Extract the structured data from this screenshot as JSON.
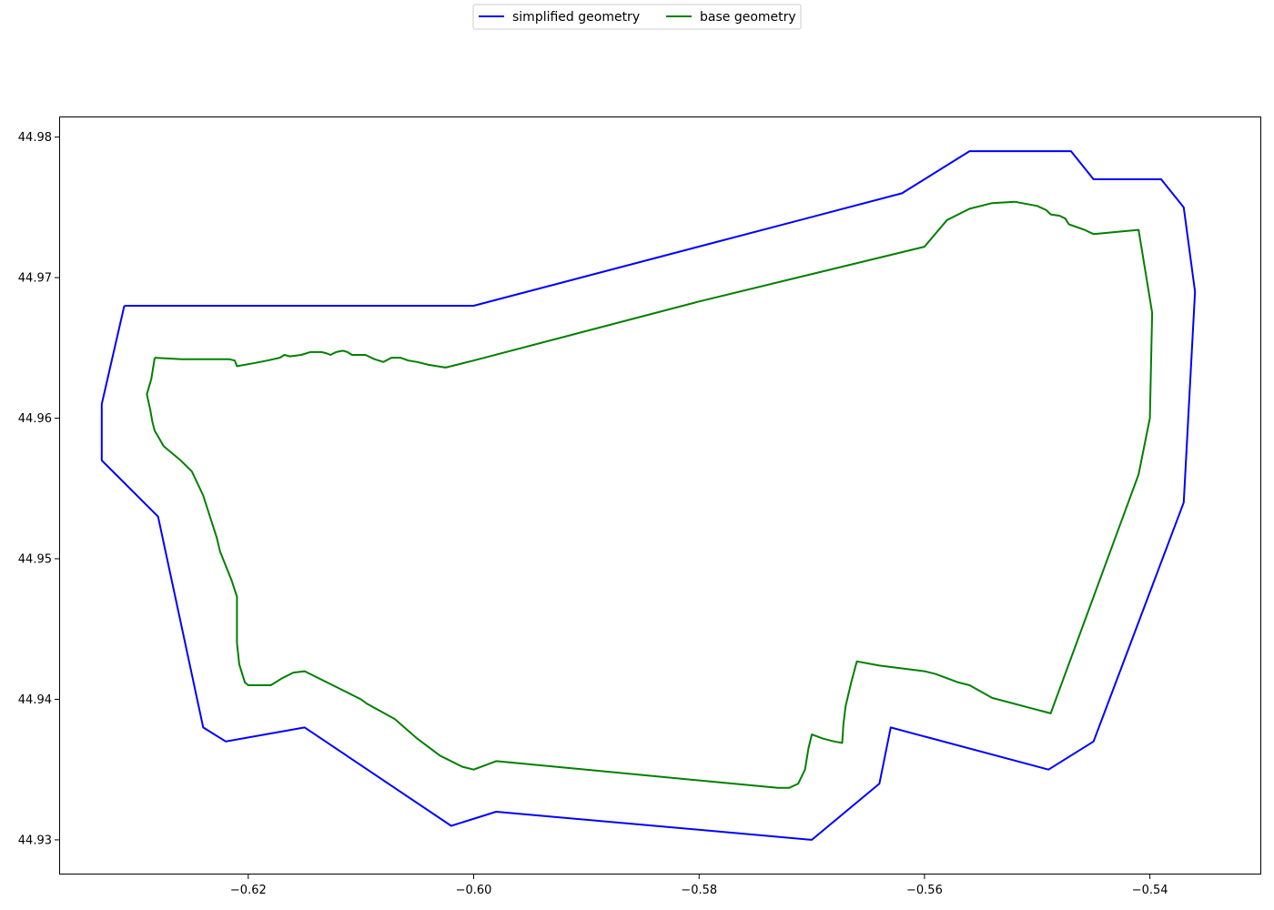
{
  "chart_data": {
    "type": "line",
    "title": "",
    "xlabel": "",
    "ylabel": "",
    "xlim": [
      -0.6367,
      -0.5302
    ],
    "ylim": [
      44.9276,
      44.9814
    ],
    "x_ticks": [
      -0.62,
      -0.6,
      -0.58,
      -0.56,
      -0.54
    ],
    "x_tick_labels": [
      "−0.62",
      "−0.60",
      "−0.58",
      "−0.56",
      "−0.54"
    ],
    "y_ticks": [
      44.93,
      44.94,
      44.95,
      44.96,
      44.97,
      44.98
    ],
    "y_tick_labels": [
      "44.93",
      "44.94",
      "44.95",
      "44.96",
      "44.97",
      "44.98"
    ],
    "grid": false,
    "legend_placement": "top-center",
    "series": [
      {
        "name": "simplified geometry",
        "color": "#0000ff",
        "points": [
          [
            -0.631,
            44.968
          ],
          [
            -0.6,
            44.968
          ],
          [
            -0.562,
            44.976
          ],
          [
            -0.556,
            44.979
          ],
          [
            -0.547,
            44.979
          ],
          [
            -0.545,
            44.977
          ],
          [
            -0.539,
            44.977
          ],
          [
            -0.537,
            44.975
          ],
          [
            -0.536,
            44.969
          ],
          [
            -0.537,
            44.954
          ],
          [
            -0.545,
            44.937
          ],
          [
            -0.549,
            44.935
          ],
          [
            -0.563,
            44.938
          ],
          [
            -0.564,
            44.934
          ],
          [
            -0.57,
            44.93
          ],
          [
            -0.598,
            44.932
          ],
          [
            -0.602,
            44.931
          ],
          [
            -0.615,
            44.938
          ],
          [
            -0.622,
            44.937
          ],
          [
            -0.624,
            44.938
          ],
          [
            -0.628,
            44.953
          ],
          [
            -0.633,
            44.957
          ],
          [
            -0.633,
            44.961
          ],
          [
            -0.631,
            44.968
          ]
        ]
      },
      {
        "name": "base geometry",
        "color": "#008000",
        "points": [
          [
            -0.6283,
            44.9643
          ],
          [
            -0.6259,
            44.9642
          ],
          [
            -0.6237,
            44.9642
          ],
          [
            -0.6217,
            44.9642
          ],
          [
            -0.6212,
            44.9641
          ],
          [
            -0.621,
            44.9637
          ],
          [
            -0.6196,
            44.9639
          ],
          [
            -0.6183,
            44.9641
          ],
          [
            -0.6172,
            44.9643
          ],
          [
            -0.6168,
            44.9645
          ],
          [
            -0.6163,
            44.9644
          ],
          [
            -0.6153,
            44.9645
          ],
          [
            -0.6145,
            44.9647
          ],
          [
            -0.6135,
            44.9647
          ],
          [
            -0.613,
            44.9646
          ],
          [
            -0.6127,
            44.9645
          ],
          [
            -0.6122,
            44.9647
          ],
          [
            -0.6116,
            44.9648
          ],
          [
            -0.6112,
            44.9647
          ],
          [
            -0.6108,
            44.9645
          ],
          [
            -0.6096,
            44.9645
          ],
          [
            -0.6088,
            44.9642
          ],
          [
            -0.608,
            44.964
          ],
          [
            -0.6073,
            44.9643
          ],
          [
            -0.6065,
            44.9643
          ],
          [
            -0.6058,
            44.9641
          ],
          [
            -0.605,
            44.964
          ],
          [
            -0.604,
            44.9638
          ],
          [
            -0.6025,
            44.9636
          ],
          [
            -0.602,
            44.9637
          ],
          [
            -0.6,
            44.9641
          ],
          [
            -0.58,
            44.9683
          ],
          [
            -0.56,
            44.9722
          ],
          [
            -0.558,
            44.9741
          ],
          [
            -0.556,
            44.9749
          ],
          [
            -0.554,
            44.9753
          ],
          [
            -0.552,
            44.9754
          ],
          [
            -0.55,
            44.9751
          ],
          [
            -0.5492,
            44.9748
          ],
          [
            -0.5488,
            44.9745
          ],
          [
            -0.548,
            44.9744
          ],
          [
            -0.5475,
            44.9742
          ],
          [
            -0.5472,
            44.9738
          ],
          [
            -0.5465,
            44.9736
          ],
          [
            -0.5458,
            44.9734
          ],
          [
            -0.545,
            44.9731
          ],
          [
            -0.541,
            44.9734
          ],
          [
            -0.5398,
            44.9675
          ],
          [
            -0.54,
            44.96
          ],
          [
            -0.541,
            44.956
          ],
          [
            -0.5488,
            44.939
          ],
          [
            -0.554,
            44.9401
          ],
          [
            -0.556,
            44.941
          ],
          [
            -0.557,
            44.9412
          ],
          [
            -0.558,
            44.9415
          ],
          [
            -0.559,
            44.9418
          ],
          [
            -0.56,
            44.942
          ],
          [
            -0.562,
            44.9422
          ],
          [
            -0.564,
            44.9424
          ],
          [
            -0.566,
            44.9427
          ],
          [
            -0.5665,
            44.9412
          ],
          [
            -0.567,
            44.9395
          ],
          [
            -0.5672,
            44.9382
          ],
          [
            -0.5673,
            44.9369
          ],
          [
            -0.568,
            44.937
          ],
          [
            -0.569,
            44.9372
          ],
          [
            -0.57,
            44.9375
          ],
          [
            -0.5703,
            44.9365
          ],
          [
            -0.5706,
            44.935
          ],
          [
            -0.5712,
            44.934
          ],
          [
            -0.572,
            44.9337
          ],
          [
            -0.573,
            44.9337
          ],
          [
            -0.598,
            44.9356
          ],
          [
            -0.599,
            44.9353
          ],
          [
            -0.6,
            44.935
          ],
          [
            -0.601,
            44.9352
          ],
          [
            -0.603,
            44.936
          ],
          [
            -0.605,
            44.9372
          ],
          [
            -0.607,
            44.9386
          ],
          [
            -0.6095,
            44.9397
          ],
          [
            -0.61,
            44.94
          ],
          [
            -0.615,
            44.942
          ],
          [
            -0.616,
            44.9419
          ],
          [
            -0.617,
            44.9415
          ],
          [
            -0.618,
            44.941
          ],
          [
            -0.62,
            44.941
          ],
          [
            -0.6203,
            44.9412
          ],
          [
            -0.6208,
            44.9425
          ],
          [
            -0.621,
            44.944
          ],
          [
            -0.621,
            44.9473
          ],
          [
            -0.6215,
            44.9485
          ],
          [
            -0.622,
            44.9495
          ],
          [
            -0.6225,
            44.9505
          ],
          [
            -0.6228,
            44.9515
          ],
          [
            -0.6232,
            44.9525
          ],
          [
            -0.624,
            44.9545
          ],
          [
            -0.625,
            44.9562
          ],
          [
            -0.626,
            44.957
          ],
          [
            -0.6275,
            44.958
          ],
          [
            -0.628,
            44.9587
          ],
          [
            -0.6283,
            44.9591
          ],
          [
            -0.6285,
            44.9597
          ],
          [
            -0.6287,
            44.9606
          ],
          [
            -0.629,
            44.9617
          ],
          [
            -0.6286,
            44.9628
          ],
          [
            -0.6283,
            44.9643
          ]
        ]
      }
    ]
  }
}
